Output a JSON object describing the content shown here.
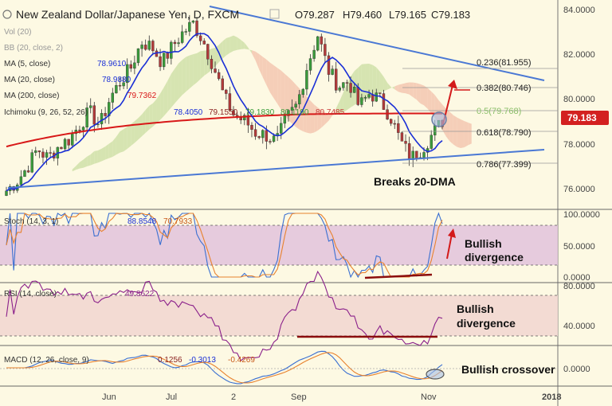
{
  "header": {
    "symbol": "New Zealand Dollar/Japanese Yen, D, FXCM",
    "ohlc": [
      "O79.287",
      "H79.460",
      "L79.165",
      "C79.183"
    ]
  },
  "indicators": {
    "vol": "Vol (20)",
    "bb": "BB (20, close, 2)",
    "ma5": {
      "label": "MA (5, close)",
      "value": "78.9610"
    },
    "ma20": {
      "label": "MA (20, close)",
      "value": "78.9880"
    },
    "ma200": {
      "label": "MA (200, close)",
      "value": "79.7362"
    },
    "ichimoku": {
      "label": "Ichimoku (9, 26, 52, 26)",
      "values": [
        "78.4050",
        "79.1550",
        "79.1830",
        "80.1190",
        "80.7485"
      ]
    },
    "stoch": {
      "label": "Stoch (14, 3, 1)",
      "values": [
        "88.8548",
        "70.7933"
      ]
    },
    "rsi": {
      "label": "RSI (14, close)",
      "value": "49.8622"
    },
    "macd": {
      "label": "MACD (12, 26, close, 9)",
      "values": [
        "0.1256",
        "-0.3013",
        "-0.4269"
      ]
    }
  },
  "price_axis": [
    "84.0000",
    "82.0000",
    "80.0000",
    "78.0000",
    "76.0000"
  ],
  "last_price": "79.183",
  "fib_levels": [
    {
      "label": "0.236(81.955)"
    },
    {
      "label": "0.382(80.746)"
    },
    {
      "label": "0.5(79.768)"
    },
    {
      "label": "0.618(78.790)"
    },
    {
      "label": "0.786(77.399)"
    }
  ],
  "stoch_axis": [
    "100.0000",
    "50.0000",
    "0.0000"
  ],
  "rsi_axis": [
    "80.0000",
    "40.0000"
  ],
  "macd_axis": [
    "0.0000"
  ],
  "x_axis": [
    "Jun",
    "Jul",
    "2",
    "Sep",
    "Nov",
    "2018"
  ],
  "annotations": {
    "breaks": "Breaks 20-DMA",
    "stoch_div_1": "Bullish",
    "stoch_div_2": "divergence",
    "rsi_div_1": "Bullish",
    "rsi_div_2": "divergence",
    "macd_cross": "Bullish crossover"
  },
  "colors": {
    "background": "#fdf9e3",
    "up_candle": "#3a9c3a",
    "down_candle": "#b33a3a",
    "ma5": "#4a7fd0",
    "ma20": "#1a2fd6",
    "ma200": "#d81818",
    "ichimoku_cloud_bull": "#cfe0a8",
    "ichimoku_cloud_bear": "#f3c7b0",
    "trendline": "#4a78d4",
    "last_price_bg": "#d32020",
    "stoch_band": "#e2c3dc",
    "rsi_band": "#f2d7d0",
    "divergence": "#8b0d0d",
    "arrow": "#d31a1a"
  },
  "chart_data": {
    "type": "candlestick",
    "title": "New Zealand Dollar/Japanese Yen, D, FXCM",
    "ylim": [
      75.4,
      84.4
    ],
    "close_path": [
      76.2,
      76.6,
      77.2,
      78.0,
      77.6,
      78.1,
      78.4,
      79.0,
      79.6,
      79.0,
      80.2,
      80.9,
      81.5,
      82.6,
      82.4,
      81.7,
      82.4,
      83.0,
      83.4,
      82.6,
      81.5,
      80.2,
      79.4,
      79.2,
      78.7,
      78.6,
      78.3,
      79.3,
      79.9,
      81.6,
      82.9,
      81.4,
      80.7,
      80.9,
      79.8,
      80.4,
      80.1,
      79.4,
      78.3,
      77.6,
      78.0,
      78.6,
      79.2
    ],
    "trendlines": [
      {
        "from": [
          0,
          76.0
        ],
        "to": [
          120,
          77.7
        ]
      },
      {
        "from": [
          22,
          84.2
        ],
        "to": [
          120,
          81.1
        ]
      }
    ],
    "fib_values": [
      81.955,
      80.746,
      79.768,
      78.79,
      77.399
    ]
  }
}
